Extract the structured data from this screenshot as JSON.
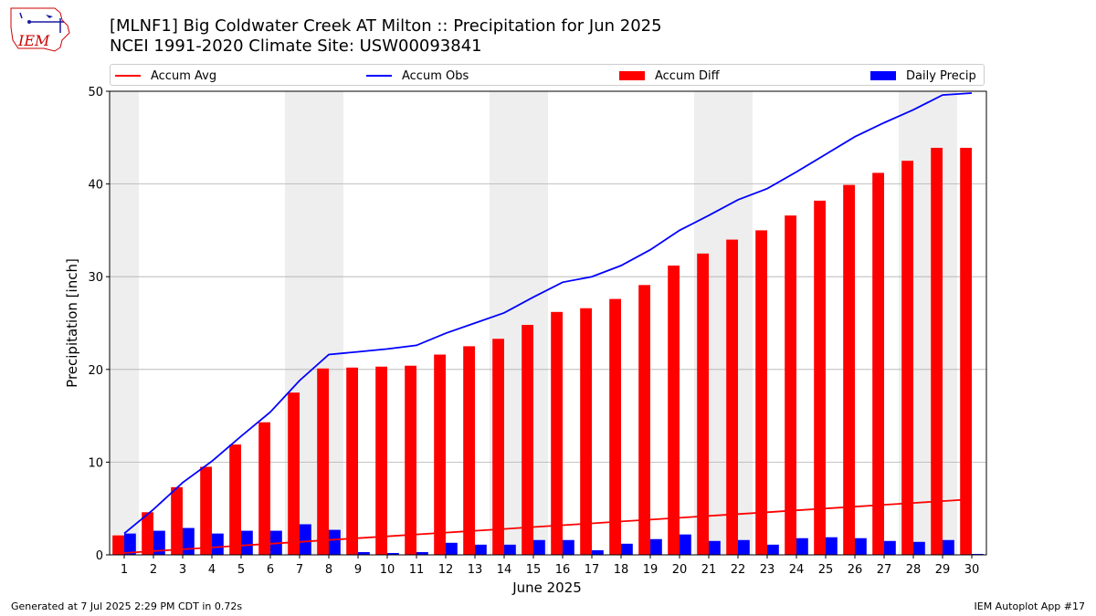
{
  "header": {
    "title_line1": "[MLNF1] Big Coldwater Creek  AT Milton :: Precipitation for Jun 2025",
    "title_line2": "NCEI 1991-2020 Climate Site: USW00093841",
    "logo_text": "IEM"
  },
  "footer": {
    "left": "Generated at 7 Jul 2025 2:29 PM CDT in 0.72s",
    "right": "IEM Autoplot App #17"
  },
  "colors": {
    "accum_avg": "#ff0000",
    "accum_obs": "#0000ff",
    "accum_diff": "#ff0000",
    "daily_precip": "#0000ff",
    "weekend_band": "#eeeeee",
    "grid": "#b0b0b0"
  },
  "chart_data": {
    "type": "bar",
    "xlabel": "June 2025",
    "ylabel": "Precipitation [inch]",
    "ylim": [
      0,
      50
    ],
    "xlim": [
      0.5,
      30.5
    ],
    "yticks": [
      0,
      10,
      20,
      30,
      40,
      50
    ],
    "grid": "horizontal",
    "legend_placement": "top",
    "shaded_weekends": [
      [
        0.5,
        1.5
      ],
      [
        6.5,
        8.5
      ],
      [
        13.5,
        15.5
      ],
      [
        20.5,
        22.5
      ],
      [
        27.5,
        29.5
      ]
    ],
    "categories": [
      "1",
      "2",
      "3",
      "4",
      "5",
      "6",
      "7",
      "8",
      "9",
      "10",
      "11",
      "12",
      "13",
      "14",
      "15",
      "16",
      "17",
      "18",
      "19",
      "20",
      "21",
      "22",
      "23",
      "24",
      "25",
      "26",
      "27",
      "28",
      "29",
      "30"
    ],
    "series": [
      {
        "name": "Accum Avg",
        "kind": "line",
        "values": [
          0.2,
          0.4,
          0.6,
          0.8,
          1.0,
          1.2,
          1.4,
          1.6,
          1.8,
          2.0,
          2.2,
          2.4,
          2.6,
          2.8,
          3.0,
          3.2,
          3.4,
          3.6,
          3.8,
          4.0,
          4.2,
          4.4,
          4.6,
          4.8,
          5.0,
          5.2,
          5.4,
          5.6,
          5.8,
          6.0
        ]
      },
      {
        "name": "Accum Obs",
        "kind": "line",
        "values": [
          2.3,
          4.9,
          7.8,
          10.1,
          12.8,
          15.4,
          18.8,
          21.6,
          21.9,
          22.2,
          22.6,
          23.9,
          25.0,
          26.1,
          27.8,
          29.4,
          30.0,
          31.2,
          32.9,
          35.0,
          36.6,
          38.3,
          39.5,
          41.3,
          43.2,
          45.1,
          46.6,
          48.0,
          49.6,
          49.8
        ]
      },
      {
        "name": "Accum Diff",
        "kind": "bar",
        "values": [
          2.1,
          4.6,
          7.3,
          9.5,
          11.9,
          14.3,
          17.5,
          20.1,
          20.2,
          20.3,
          20.4,
          21.6,
          22.5,
          23.3,
          24.8,
          26.2,
          26.6,
          27.6,
          29.1,
          31.2,
          32.5,
          34.0,
          35.0,
          36.6,
          38.2,
          39.9,
          41.2,
          42.5,
          43.9,
          43.9
        ]
      },
      {
        "name": "Daily Precip",
        "kind": "bar",
        "values": [
          2.3,
          2.6,
          2.9,
          2.3,
          2.6,
          2.6,
          3.3,
          2.7,
          0.3,
          0.2,
          0.3,
          1.3,
          1.1,
          1.1,
          1.6,
          1.6,
          0.5,
          1.2,
          1.7,
          2.2,
          1.5,
          1.6,
          1.1,
          1.8,
          1.9,
          1.8,
          1.5,
          1.4,
          1.6,
          0.1
        ]
      }
    ]
  }
}
